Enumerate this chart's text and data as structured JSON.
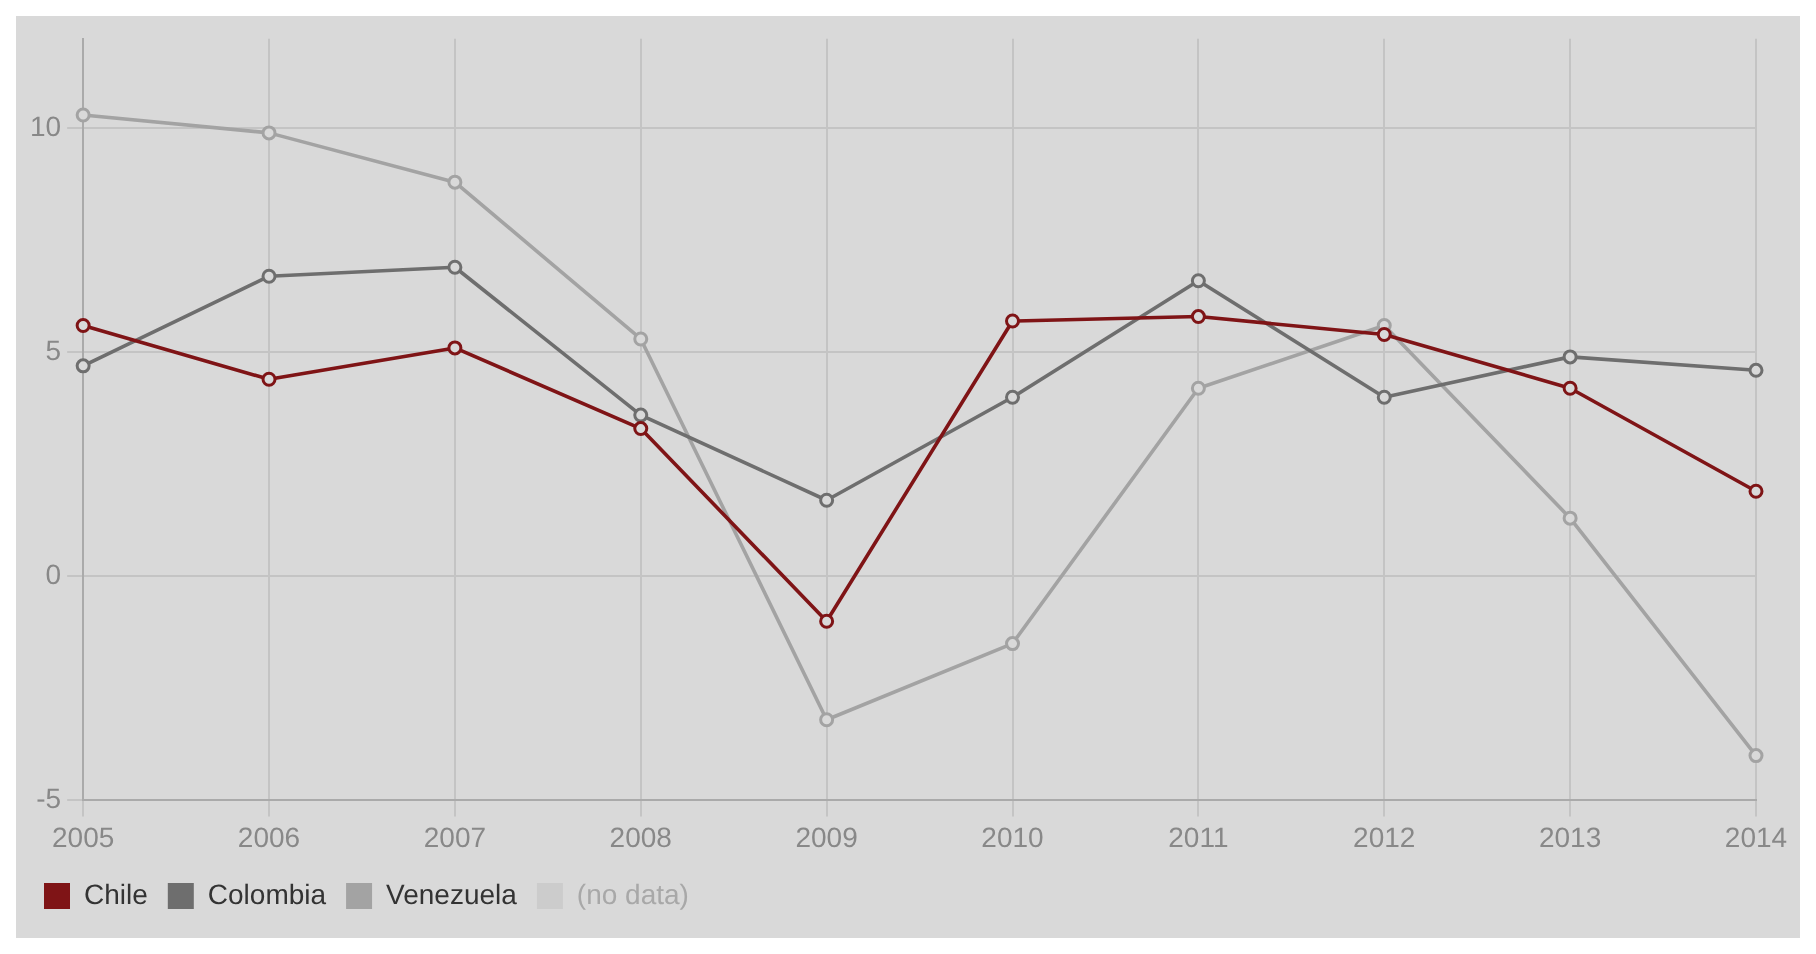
{
  "chart_data": {
    "type": "line",
    "categories": [
      "2005",
      "2006",
      "2007",
      "2008",
      "2009",
      "2010",
      "2011",
      "2012",
      "2013",
      "2014"
    ],
    "series": [
      {
        "name": "Chile",
        "color": "#7f1416",
        "values": [
          5.6,
          4.4,
          5.1,
          3.3,
          -1.0,
          5.7,
          5.8,
          5.4,
          4.2,
          1.9
        ]
      },
      {
        "name": "Colombia",
        "color": "#6e6e6e",
        "values": [
          4.7,
          6.7,
          6.9,
          3.6,
          1.7,
          4.0,
          6.6,
          4.0,
          4.9,
          4.6
        ]
      },
      {
        "name": "Venezuela",
        "color": "#a3a3a3",
        "values": [
          10.3,
          9.9,
          8.8,
          5.3,
          -3.2,
          -1.5,
          4.2,
          5.6,
          1.3,
          -4.0
        ]
      },
      {
        "name": "(no data)",
        "color": "#cccccc",
        "values": [
          null,
          null,
          null,
          null,
          null,
          null,
          null,
          null,
          null,
          null
        ]
      }
    ],
    "ylim": [
      -5,
      12
    ],
    "yticks": [
      -5,
      0,
      5,
      10
    ],
    "grid": true,
    "legend": "bottom left",
    "marker": "circle",
    "line_style": "solid"
  }
}
